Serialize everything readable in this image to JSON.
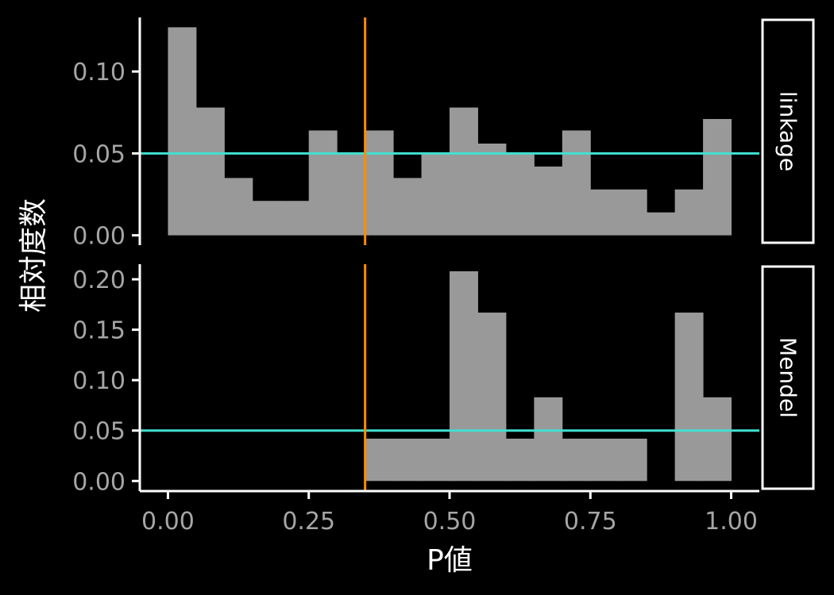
{
  "chart_data": {
    "type": "bar",
    "xlabel": "P値",
    "ylabel": "相対度数",
    "xlim": [
      -0.05,
      1.05
    ],
    "x_ticks": [
      0.0,
      0.25,
      0.5,
      0.75,
      1.0
    ],
    "x_tick_labels": [
      "0.00",
      "0.25",
      "0.50",
      "0.75",
      "1.00"
    ],
    "bin_width": 0.05,
    "bin_edges": [
      0.0,
      0.05,
      0.1,
      0.15,
      0.2,
      0.25,
      0.3,
      0.35,
      0.4,
      0.45,
      0.5,
      0.55,
      0.6,
      0.65,
      0.7,
      0.75,
      0.8,
      0.85,
      0.9,
      0.95,
      1.0
    ],
    "vline": {
      "x": 0.35,
      "color": "#ff8c00"
    },
    "hline": {
      "y": 0.05,
      "color": "#40e0d0"
    },
    "bar_color": "#999999",
    "background": "#000000",
    "grid": false,
    "panels": [
      {
        "strip": "linkage",
        "ylim": [
          -0.006,
          0.133
        ],
        "y_ticks": [
          0.0,
          0.05,
          0.1
        ],
        "y_tick_labels": [
          "0.00",
          "0.05",
          "0.10"
        ],
        "values": [
          0.127,
          0.078,
          0.035,
          0.021,
          0.021,
          0.064,
          0.05,
          0.064,
          0.035,
          0.05,
          0.078,
          0.056,
          0.05,
          0.042,
          0.064,
          0.028,
          0.028,
          0.014,
          0.028,
          0.071
        ]
      },
      {
        "strip": "Mendel",
        "ylim": [
          -0.01,
          0.215
        ],
        "y_ticks": [
          0.0,
          0.05,
          0.1,
          0.15,
          0.2
        ],
        "y_tick_labels": [
          "0.00",
          "0.05",
          "0.10",
          "0.15",
          "0.20"
        ],
        "values": [
          0,
          0,
          0,
          0,
          0,
          0,
          0,
          0.042,
          0.042,
          0.042,
          0.208,
          0.167,
          0.042,
          0.083,
          0.042,
          0.042,
          0.042,
          0,
          0.167,
          0.083
        ]
      }
    ]
  }
}
